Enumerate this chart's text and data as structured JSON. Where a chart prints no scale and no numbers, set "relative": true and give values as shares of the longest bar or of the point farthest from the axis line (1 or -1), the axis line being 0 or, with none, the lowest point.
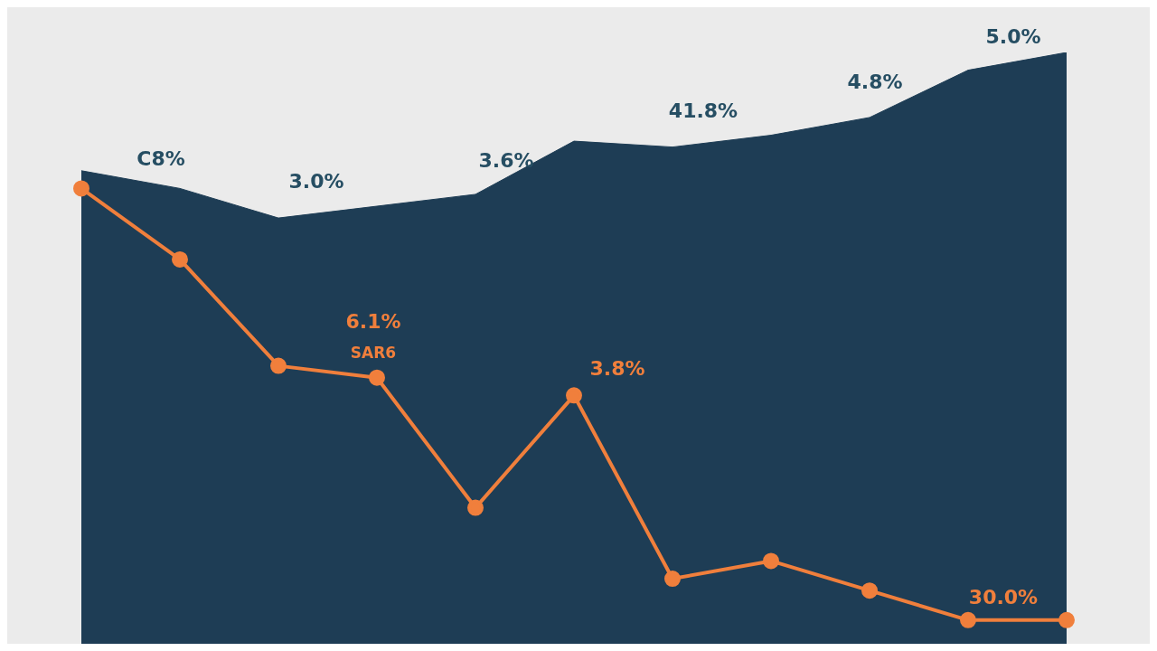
{
  "chart_data": {
    "type": "line",
    "relative": true,
    "categories": [
      null,
      null,
      null,
      null,
      null,
      null,
      null,
      null,
      null,
      null,
      null
    ],
    "series": [
      {
        "type": "area",
        "color": "#1e3d55",
        "values": [
          0.8,
          0.77,
          0.72,
          0.74,
          0.76,
          0.85,
          0.84,
          0.86,
          0.89,
          0.97,
          1.0
        ]
      },
      {
        "color": "#f07f3c",
        "marker": "circle",
        "values": [
          0.77,
          0.65,
          0.47,
          0.45,
          0.23,
          0.42,
          0.11,
          0.14,
          0.09,
          0.04,
          0.04
        ]
      }
    ],
    "annotations": [
      "C8%",
      "3.0%",
      "3.6%",
      "41.8%",
      "4.8%",
      "5.0%",
      "6.1%",
      "SAR6",
      "3.8%",
      "30.0%"
    ]
  }
}
